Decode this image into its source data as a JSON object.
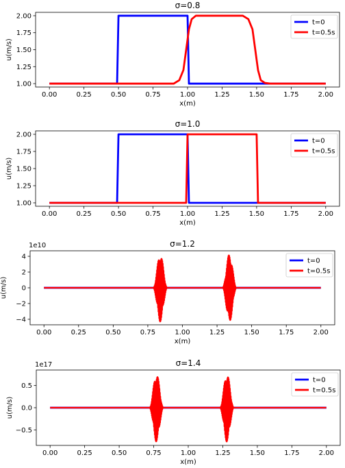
{
  "chart_data": [
    {
      "type": "line",
      "title": "σ=0.8",
      "xlabel": "x(m)",
      "ylabel": "u(m/s)",
      "xlim": [
        -0.1,
        2.1
      ],
      "ylim": [
        0.95,
        2.05
      ],
      "xticks": [
        "0.00",
        "0.25",
        "0.50",
        "0.75",
        "1.00",
        "1.25",
        "1.50",
        "1.75",
        "2.00"
      ],
      "xtick_values": [
        0,
        0.25,
        0.5,
        0.75,
        1.0,
        1.25,
        1.5,
        1.75,
        2.0
      ],
      "yticks": [
        "1.00",
        "1.25",
        "1.50",
        "1.75",
        "2.00"
      ],
      "ytick_values": [
        1.0,
        1.25,
        1.5,
        1.75,
        2.0
      ],
      "offset_text": "",
      "legend": {
        "placement": "top-right",
        "entries": [
          "t=0",
          "t=0.5s"
        ]
      },
      "series": [
        {
          "name": "t=0",
          "color": "#0000ff",
          "x": [
            0,
            0.49,
            0.5,
            1.0,
            1.01,
            2.0
          ],
          "y": [
            1,
            1,
            2,
            2,
            1,
            1
          ]
        },
        {
          "name": "t=0.5s",
          "color": "#ff0000",
          "x": [
            0,
            0.9,
            0.94,
            0.97,
            0.99,
            1.01,
            1.03,
            1.06,
            1.1,
            1.4,
            1.44,
            1.47,
            1.49,
            1.51,
            1.53,
            1.56,
            1.6,
            2.0
          ],
          "y": [
            1,
            1,
            1.05,
            1.2,
            1.5,
            1.8,
            1.95,
            2,
            2,
            2,
            1.95,
            1.8,
            1.5,
            1.2,
            1.05,
            1.01,
            1,
            1
          ]
        }
      ]
    },
    {
      "type": "line",
      "title": "σ=1.0",
      "xlabel": "x(m)",
      "ylabel": "u(m/s)",
      "xlim": [
        -0.1,
        2.1
      ],
      "ylim": [
        0.95,
        2.05
      ],
      "xticks": [
        "0.00",
        "0.25",
        "0.50",
        "0.75",
        "1.00",
        "1.25",
        "1.50",
        "1.75",
        "2.00"
      ],
      "xtick_values": [
        0,
        0.25,
        0.5,
        0.75,
        1.0,
        1.25,
        1.5,
        1.75,
        2.0
      ],
      "yticks": [
        "1.00",
        "1.25",
        "1.50",
        "1.75",
        "2.00"
      ],
      "ytick_values": [
        1.0,
        1.25,
        1.5,
        1.75,
        2.0
      ],
      "offset_text": "",
      "legend": {
        "placement": "top-right",
        "entries": [
          "t=0",
          "t=0.5s"
        ]
      },
      "series": [
        {
          "name": "t=0",
          "color": "#0000ff",
          "x": [
            0,
            0.49,
            0.5,
            1.0,
            1.01,
            2.0
          ],
          "y": [
            1,
            1,
            2,
            2,
            1,
            1
          ]
        },
        {
          "name": "t=0.5s",
          "color": "#ff0000",
          "x": [
            0,
            0.99,
            1.0,
            1.5,
            1.51,
            2.0
          ],
          "y": [
            1,
            1,
            2,
            2,
            1,
            1
          ]
        }
      ]
    },
    {
      "type": "line",
      "title": "σ=1.2",
      "xlabel": "x(m)",
      "ylabel": "u(m/s)",
      "xlim": [
        -0.1,
        2.1
      ],
      "ylim": [
        -4.7,
        4.7
      ],
      "xticks": [
        "0.00",
        "0.25",
        "0.50",
        "0.75",
        "1.00",
        "1.25",
        "1.50",
        "1.75",
        "2.00"
      ],
      "xtick_values": [
        0,
        0.25,
        0.5,
        0.75,
        1.0,
        1.25,
        1.5,
        1.75,
        2.0
      ],
      "yticks": [
        "4",
        "2",
        "0",
        "−2",
        "−4"
      ],
      "ytick_values": [
        4,
        2,
        0,
        -2,
        -4
      ],
      "offset_text": "1e10",
      "legend": {
        "placement": "top-right",
        "entries": [
          "t=0",
          "t=0.5s"
        ]
      },
      "series": [
        {
          "name": "t=0",
          "color": "#0000ff",
          "x": [
            0,
            2.0
          ],
          "y": [
            0,
            0
          ]
        },
        {
          "name": "t=0.5s",
          "color": "#ff0000",
          "oscillation_bursts": [
            {
              "center": 0.84,
              "half_width": 0.05,
              "amplitude": 4.3
            },
            {
              "center": 1.34,
              "half_width": 0.05,
              "amplitude": 4.3
            }
          ],
          "x": [
            0,
            2.0
          ],
          "y": [
            0,
            0
          ]
        }
      ]
    },
    {
      "type": "line",
      "title": "σ=1.4",
      "xlabel": "x(m)",
      "ylabel": "u(m/s)",
      "xlim": [
        -0.1,
        2.1
      ],
      "ylim": [
        -0.85,
        0.85
      ],
      "xticks": [
        "0.00",
        "0.25",
        "0.50",
        "0.75",
        "1.00",
        "1.25",
        "1.50",
        "1.75",
        "2.00"
      ],
      "xtick_values": [
        0,
        0.25,
        0.5,
        0.75,
        1.0,
        1.25,
        1.5,
        1.75,
        2.0
      ],
      "yticks": [
        "0.5",
        "0.0",
        "−0.5"
      ],
      "ytick_values": [
        0.5,
        0.0,
        -0.5
      ],
      "offset_text": "1e17",
      "legend": {
        "placement": "top-right",
        "entries": [
          "t=0",
          "t=0.5s"
        ]
      },
      "series": [
        {
          "name": "t=0",
          "color": "#0000ff",
          "x": [
            0,
            2.0
          ],
          "y": [
            0,
            0
          ]
        },
        {
          "name": "t=0.5s",
          "color": "#ff0000",
          "oscillation_bursts": [
            {
              "center": 0.77,
              "half_width": 0.05,
              "amplitude": 0.77
            },
            {
              "center": 1.28,
              "half_width": 0.05,
              "amplitude": 0.77
            }
          ],
          "x": [
            0,
            2.0
          ],
          "y": [
            0,
            0
          ]
        }
      ]
    }
  ]
}
